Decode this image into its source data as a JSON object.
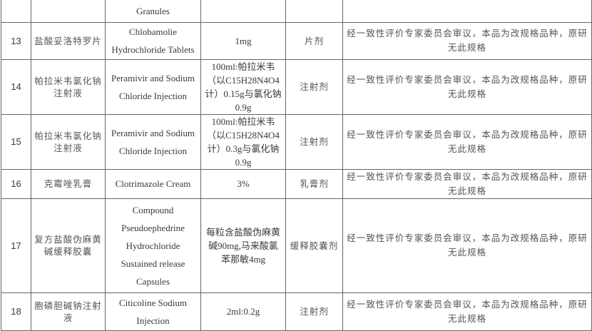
{
  "continued_row": {
    "english_name": "Granules"
  },
  "rows": [
    {
      "no": "13",
      "chinese_name": "盐酸妥洛特罗片",
      "english_name": "Chlobamolie Hydrochloride Tablets",
      "spec": "1mg",
      "dosage_form": "片剂",
      "note": "经一致性评价专家委员会审议，本品为改规格品种，原研无此规格"
    },
    {
      "no": "14",
      "chinese_name": "帕拉米韦氯化钠注射液",
      "english_name": "Peramivir and Sodium Chloride Injection",
      "spec": "100ml:帕拉米韦（以C15H28N4O4计）0.15g与氯化钠0.9g",
      "dosage_form": "注射剂",
      "note": "经一致性评价专家委员会审议，本品为改规格品种，原研无此规格"
    },
    {
      "no": "15",
      "chinese_name": "帕拉米韦氯化钠注射液",
      "english_name": "Peramivir and Sodium Chloride Injection",
      "spec": "100ml:帕拉米韦（以C15H28N4O4计）0.3g与氯化钠0.9g",
      "dosage_form": "注射剂",
      "note": "经一致性评价专家委员会审议，本品为改规格品种，原研无此规格"
    },
    {
      "no": "16",
      "chinese_name": "克霉唑乳膏",
      "english_name": "Clotrimazole Cream",
      "spec": "3%",
      "dosage_form": "乳膏剂",
      "note": "经一致性评价专家委员会审议，本品为改规格品种，原研无此规格"
    },
    {
      "no": "17",
      "chinese_name": "复方盐酸伪麻黄碱缓释胶囊",
      "english_name": "Compound Pseudoephedrine Hydrochloride Sustained release Capsules",
      "spec": "每粒含盐酸伪麻黄碱90mg,马来酸氯苯那敏4mg",
      "dosage_form": "缓释胶囊剂",
      "note": "经一致性评价专家委员会审议，本品为改规格品种，原研无此规格"
    },
    {
      "no": "18",
      "chinese_name": "胞磷胆碱钠注射液",
      "english_name": "Citicoline Sodium Injection",
      "spec": "2ml:0.2g",
      "dosage_form": "注射剂",
      "note": "经一致性评价专家委员会审议，本品为改规格品种，原研无此规格"
    }
  ]
}
